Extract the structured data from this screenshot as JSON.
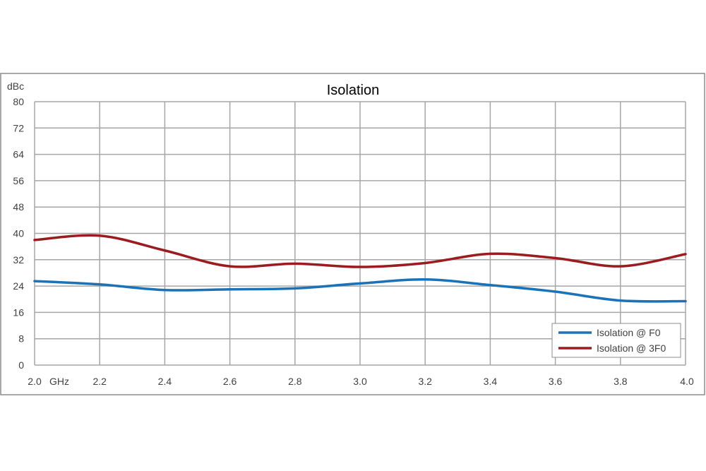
{
  "chart_data": {
    "type": "line",
    "title": "Isolation",
    "ylabel": "dBc",
    "x_unit": "GHz",
    "xlim": [
      2.0,
      4.0
    ],
    "ylim": [
      0,
      80
    ],
    "x_ticks": [
      2.0,
      2.2,
      2.4,
      2.6,
      2.8,
      3.0,
      3.2,
      3.4,
      3.6,
      3.8,
      4.0
    ],
    "y_ticks": [
      0,
      8,
      16,
      24,
      32,
      40,
      48,
      56,
      64,
      72,
      80
    ],
    "grid": true,
    "legend_position": "bottom-right",
    "x": [
      2.0,
      2.2,
      2.4,
      2.6,
      2.8,
      3.0,
      3.2,
      3.4,
      3.6,
      3.8,
      4.0
    ],
    "series": [
      {
        "name": "Isolation @ F0",
        "color": "#1a72b8",
        "values": [
          25.5,
          24.5,
          22.8,
          23.0,
          23.3,
          24.8,
          26.0,
          24.3,
          22.3,
          19.6,
          19.4
        ]
      },
      {
        "name": "Isolation @ 3F0",
        "color": "#9b1c1f",
        "values": [
          38.0,
          39.3,
          34.8,
          30.0,
          30.8,
          29.8,
          31.0,
          33.8,
          32.5,
          30.0,
          33.7
        ]
      }
    ]
  }
}
